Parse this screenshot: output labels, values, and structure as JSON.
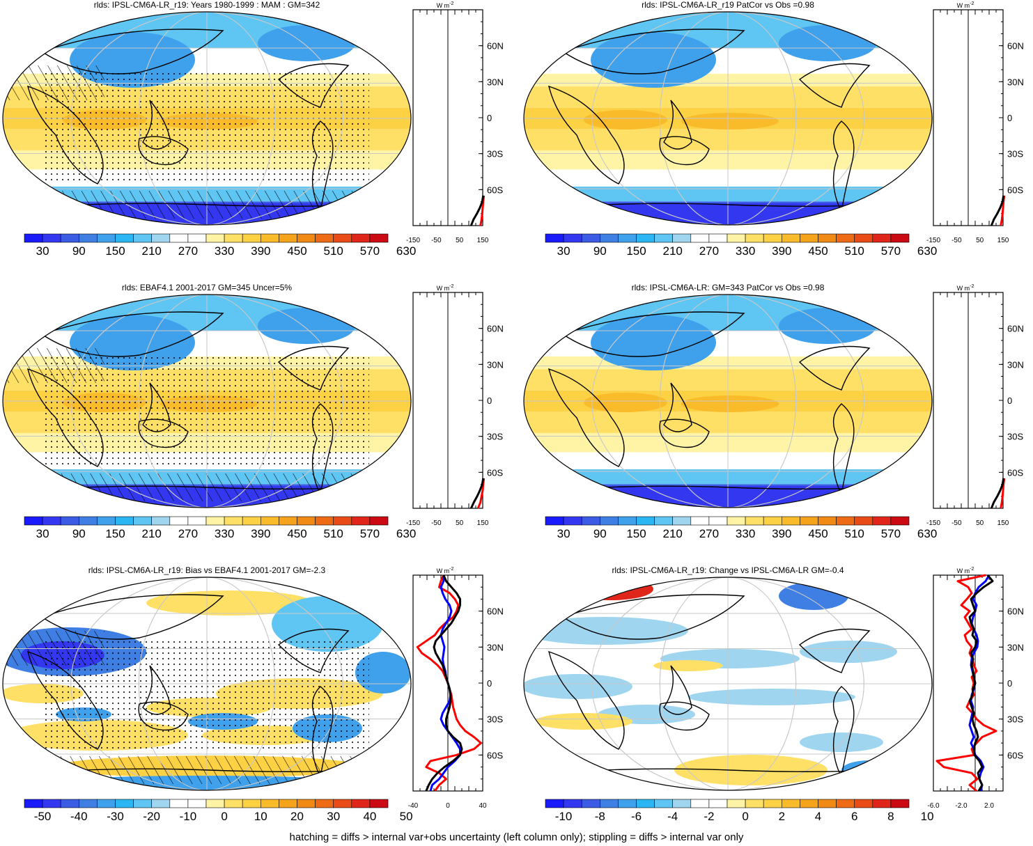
{
  "footer": "hatching = diffs > internal var+obs uncertainty (left column only); stippling = diffs > internal var only",
  "colors": {
    "abs_scale": [
      "#1a1aff",
      "#3338f0",
      "#3d5ce6",
      "#3f7fe4",
      "#3fa0ec",
      "#2ab6f2",
      "#5fc6f3",
      "#9fd5ee",
      "#ffffff",
      "#ffffff",
      "#fff4a6",
      "#ffe066",
      "#fdd144",
      "#f9bb2a",
      "#f6a31c",
      "#f18a14",
      "#ee6a14",
      "#e94b16",
      "#e0261b",
      "#cc0a14"
    ],
    "diff_scale": [
      "#1a1aff",
      "#3338f0",
      "#3d5ce6",
      "#3f7fe4",
      "#3fa0ec",
      "#2ab6f2",
      "#5fc6f3",
      "#9fd5ee",
      "#ffffff",
      "#ffffff",
      "#fff4a6",
      "#ffe066",
      "#fdd144",
      "#f9bb2a",
      "#f6a31c",
      "#f18a14",
      "#ee6a14",
      "#e94b16",
      "#e0261b",
      "#cc0a14"
    ],
    "line_red": "#ff0000",
    "line_blue": "#0000ff",
    "line_black": "#000000",
    "gridline": "#c8c8c8",
    "coast": "#000000"
  },
  "chart_data": [
    {
      "type": "heatmap",
      "title": "rlds: IPSL-CM6A-LR_r19: Years 1980-1999 : MAM : GM=342",
      "colorbar_labels": [
        "30",
        "90",
        "150",
        "210",
        "270",
        "330",
        "390",
        "450",
        "510",
        "570",
        "630"
      ],
      "colorbar_range": [
        0,
        660
      ],
      "hatching": true,
      "stippling": true,
      "zonal_profile": {
        "unit_label": "W m-2",
        "unit_base": "W m",
        "unit_sup": "-2",
        "xlim": [
          -150,
          150
        ],
        "x_tick_labels": [
          "-150",
          "-50",
          "50",
          "150"
        ],
        "lat_tick_labels": [
          "60N",
          "30N",
          "0",
          "30S",
          "60S"
        ],
        "series": [
          {
            "color": "red",
            "lat": [
              -90,
              -85,
              -80,
              -75,
              -70,
              -65
            ],
            "value": [
              140,
              145,
              148,
              150,
              152,
              155
            ]
          },
          {
            "color": "black",
            "lat": [
              -90,
              -85,
              -80,
              -75,
              -70,
              -65
            ],
            "value": [
              100,
              110,
              125,
              138,
              148,
              152
            ]
          }
        ]
      }
    },
    {
      "type": "heatmap",
      "title": "rlds: IPSL-CM6A-LR_r19 PatCor vs Obs =0.98",
      "colorbar_labels": [
        "30",
        "90",
        "150",
        "210",
        "270",
        "330",
        "390",
        "450",
        "510",
        "570",
        "630"
      ],
      "colorbar_range": [
        0,
        660
      ],
      "hatching": false,
      "stippling": false,
      "zonal_profile": {
        "unit_label": "W m-2",
        "unit_base": "W m",
        "unit_sup": "-2",
        "xlim": [
          -150,
          150
        ],
        "x_tick_labels": [
          "-150",
          "-50",
          "50",
          "150"
        ],
        "lat_tick_labels": [
          "60N",
          "30N",
          "0",
          "30S",
          "60S"
        ],
        "series": [
          {
            "color": "red",
            "lat": [
              -90,
              -85,
              -80,
              -75,
              -70,
              -65
            ],
            "value": [
              140,
              145,
              148,
              150,
              152,
              155
            ]
          },
          {
            "color": "black",
            "lat": [
              -90,
              -85,
              -80,
              -75,
              -70,
              -65
            ],
            "value": [
              100,
              110,
              125,
              138,
              148,
              152
            ]
          }
        ]
      }
    },
    {
      "type": "heatmap",
      "title": "rlds: EBAF4.1 2001-2017 GM=345 Uncer=5%",
      "colorbar_labels": [
        "30",
        "90",
        "150",
        "210",
        "270",
        "330",
        "390",
        "450",
        "510",
        "570",
        "630"
      ],
      "colorbar_range": [
        0,
        660
      ],
      "hatching": true,
      "stippling": true,
      "zonal_profile": {
        "unit_label": "W m-2",
        "unit_base": "W m",
        "unit_sup": "-2",
        "xlim": [
          -150,
          150
        ],
        "x_tick_labels": [
          "-150",
          "-50",
          "50",
          "150"
        ],
        "lat_tick_labels": [
          "60N",
          "30N",
          "0",
          "30S",
          "60S"
        ],
        "series": [
          {
            "color": "red",
            "lat": [
              -90,
              -85,
              -80,
              -75,
              -70,
              -65
            ],
            "value": [
              130,
              140,
              145,
              150,
              152,
              155
            ]
          },
          {
            "color": "black",
            "lat": [
              -90,
              -85,
              -80,
              -75,
              -70,
              -65
            ],
            "value": [
              100,
              112,
              126,
              138,
              148,
              152
            ]
          }
        ]
      }
    },
    {
      "type": "heatmap",
      "title": "rlds: IPSL-CM6A-LR: GM=343 PatCor vs Obs =0.98",
      "colorbar_labels": [
        "30",
        "90",
        "150",
        "210",
        "270",
        "330",
        "390",
        "450",
        "510",
        "570",
        "630"
      ],
      "colorbar_range": [
        0,
        660
      ],
      "hatching": false,
      "stippling": false,
      "zonal_profile": {
        "unit_label": "W m-2",
        "unit_base": "W m",
        "unit_sup": "-2",
        "xlim": [
          -150,
          150
        ],
        "x_tick_labels": [
          "-150",
          "-50",
          "50",
          "150"
        ],
        "lat_tick_labels": [
          "60N",
          "30N",
          "0",
          "30S",
          "60S"
        ],
        "series": [
          {
            "color": "red",
            "lat": [
              -90,
              -85,
              -80,
              -75,
              -70,
              -65
            ],
            "value": [
              140,
              145,
              148,
              150,
              152,
              155
            ]
          },
          {
            "color": "black",
            "lat": [
              -90,
              -85,
              -80,
              -75,
              -70,
              -65
            ],
            "value": [
              100,
              110,
              125,
              138,
              148,
              152
            ]
          }
        ]
      }
    },
    {
      "type": "heatmap",
      "title": "rlds: IPSL-CM6A-LR_r19: Bias vs EBAF4.1 2001-2017 GM=-2.3",
      "colorbar_labels": [
        "-50",
        "-40",
        "-30",
        "-20",
        "-10",
        "0",
        "10",
        "20",
        "30",
        "40",
        "50"
      ],
      "colorbar_range": [
        -55,
        55
      ],
      "hatching": true,
      "stippling": true,
      "zonal_profile": {
        "unit_label": "W m-2",
        "unit_base": "W m",
        "unit_sup": "-2",
        "xlim": [
          -40,
          40
        ],
        "x_tick_labels": [
          "-40",
          "0",
          "40"
        ],
        "lat_tick_labels": [
          "60N",
          "30N",
          "0",
          "30S",
          "60S"
        ],
        "series": [
          {
            "color": "red",
            "lat": [
              90,
              85,
              80,
              75,
              70,
              65,
              60,
              55,
              50,
              45,
              40,
              35,
              30,
              25,
              20,
              15,
              10,
              5,
              0,
              -5,
              -10,
              -15,
              -20,
              -25,
              -30,
              -35,
              -40,
              -45,
              -50,
              -55,
              -60,
              -65,
              -70,
              -75,
              -80,
              -85,
              -90
            ],
            "value": [
              -5,
              -8,
              -10,
              2,
              8,
              12,
              10,
              6,
              -3,
              -10,
              -15,
              -25,
              -35,
              -30,
              -20,
              -12,
              -6,
              -3,
              0,
              2,
              4,
              5,
              6,
              8,
              10,
              14,
              20,
              30,
              38,
              30,
              10,
              -20,
              -25,
              -10,
              -2,
              -10,
              -15
            ]
          },
          {
            "color": "blue",
            "lat": [
              90,
              85,
              80,
              75,
              70,
              65,
              60,
              55,
              50,
              45,
              40,
              35,
              30,
              25,
              20,
              15,
              10,
              5,
              0,
              -5,
              -10,
              -15,
              -20,
              -25,
              -30,
              -35,
              -40,
              -45,
              -50,
              -55,
              -60,
              -65,
              -70,
              -75,
              -80,
              -85,
              -90
            ],
            "value": [
              -5,
              -5,
              -8,
              -6,
              -3,
              2,
              4,
              2,
              -2,
              -6,
              -8,
              -6,
              -4,
              -5,
              -6,
              -5,
              -3,
              -2,
              0,
              2,
              3,
              2,
              -2,
              -6,
              -8,
              -5,
              0,
              5,
              10,
              14,
              14,
              8,
              0,
              -5,
              -10,
              -18,
              -20
            ]
          },
          {
            "color": "black",
            "lat": [
              90,
              85,
              80,
              75,
              70,
              65,
              60,
              55,
              50,
              45,
              40,
              35,
              30,
              25,
              20,
              15,
              10,
              5,
              0,
              -5,
              -10,
              -15,
              -20,
              -25,
              -30,
              -35,
              -40,
              -45,
              -50,
              -55,
              -60,
              -65,
              -70,
              -75,
              -80,
              -85,
              -90
            ],
            "value": [
              -5,
              -2,
              4,
              10,
              14,
              14,
              12,
              8,
              4,
              -2,
              -8,
              -14,
              -16,
              -14,
              -10,
              -6,
              -4,
              -2,
              0,
              2,
              3,
              3,
              2,
              0,
              -2,
              -2,
              0,
              6,
              14,
              16,
              14,
              6,
              -4,
              -12,
              -18,
              -22,
              -25
            ]
          }
        ]
      }
    },
    {
      "type": "heatmap",
      "title": "rlds: IPSL-CM6A-LR_r19: Change vs IPSL-CM6A-LR GM=-0.4",
      "colorbar_labels": [
        "-10",
        "-8",
        "-6",
        "-4",
        "-2",
        "0",
        "2",
        "4",
        "6",
        "8",
        "10"
      ],
      "colorbar_range": [
        -11,
        11
      ],
      "hatching": false,
      "stippling": false,
      "zonal_profile": {
        "unit_label": "W m-2",
        "unit_base": "W m",
        "unit_sup": "-2",
        "xlim": [
          -6,
          4
        ],
        "x_tick_labels": [
          "-6.0",
          "-2.0",
          "2.0"
        ],
        "lat_tick_labels": [
          "60N",
          "30N",
          "0",
          "30S",
          "60S"
        ],
        "series": [
          {
            "color": "red",
            "lat": [
              90,
              85,
              80,
              75,
              70,
              65,
              60,
              55,
              50,
              45,
              40,
              35,
              30,
              25,
              20,
              15,
              10,
              5,
              0,
              -5,
              -10,
              -15,
              -20,
              -25,
              -30,
              -35,
              -40,
              -45,
              -50,
              -55,
              -60,
              -65,
              -70,
              -75,
              -80,
              -85,
              -90
            ],
            "value": [
              1.5,
              -2.5,
              -1.0,
              -0.5,
              -1.2,
              -2.0,
              -0.8,
              -1.5,
              -1.0,
              -0.5,
              -1.5,
              -1.2,
              -0.5,
              -0.8,
              -0.4,
              -0.2,
              0.2,
              -0.5,
              -0.2,
              -0.4,
              -0.2,
              -0.8,
              -1.2,
              -0.4,
              0.2,
              1.2,
              3.0,
              1.0,
              0.2,
              -0.5,
              -0.2,
              -5.5,
              -4.5,
              -0.5,
              0.3,
              -0.8,
              0.2
            ]
          },
          {
            "color": "blue",
            "lat": [
              90,
              85,
              80,
              75,
              70,
              65,
              60,
              55,
              50,
              45,
              40,
              35,
              30,
              25,
              20,
              15,
              10,
              5,
              0,
              -5,
              -10,
              -15,
              -20,
              -25,
              -30,
              -35,
              -40,
              -45,
              -50,
              -55,
              -60,
              -65,
              -70,
              -75,
              -80,
              -85,
              -90
            ],
            "value": [
              2.0,
              1.5,
              0.5,
              0.0,
              -0.3,
              0.2,
              0.0,
              -0.3,
              -0.5,
              -0.2,
              0.2,
              0.4,
              0.3,
              -0.2,
              -0.5,
              -0.6,
              -0.4,
              -0.2,
              0.0,
              -0.2,
              -0.5,
              -0.6,
              -0.3,
              -0.4,
              -0.6,
              -0.8,
              -0.5,
              -0.2,
              -0.6,
              -0.2,
              0.0,
              0.8,
              1.2,
              0.8,
              0.6,
              1.0,
              0.8
            ]
          },
          {
            "color": "black",
            "lat": [
              90,
              85,
              80,
              75,
              70,
              65,
              60,
              55,
              50,
              45,
              40,
              35,
              30,
              25,
              20,
              15,
              10,
              5,
              0,
              -5,
              -10,
              -15,
              -20,
              -25,
              -30,
              -35,
              -40,
              -45,
              -50,
              -55,
              -60,
              -65,
              -70,
              -75,
              -80,
              -85,
              -90
            ],
            "value": [
              1.8,
              2.5,
              1.2,
              0.2,
              -0.6,
              -0.3,
              0.0,
              -0.8,
              -0.6,
              -0.2,
              -0.4,
              0.2,
              0.0,
              -0.6,
              -0.3,
              -0.5,
              -0.3,
              -0.2,
              0.0,
              -0.3,
              -0.4,
              -0.8,
              -0.5,
              -0.2,
              -0.4,
              -0.2,
              0.2,
              0.4,
              0.0,
              -0.2,
              -0.1,
              0.6,
              1.0,
              0.4,
              0.6,
              1.0,
              0.5
            ]
          }
        ]
      }
    }
  ]
}
